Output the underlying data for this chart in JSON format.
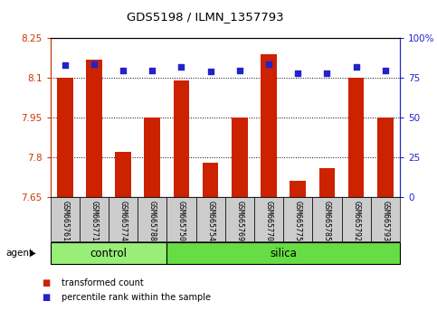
{
  "title": "GDS5198 / ILMN_1357793",
  "samples": [
    "GSM665761",
    "GSM665771",
    "GSM665774",
    "GSM665788",
    "GSM665750",
    "GSM665754",
    "GSM665769",
    "GSM665770",
    "GSM665775",
    "GSM665785",
    "GSM665792",
    "GSM665793"
  ],
  "bar_values": [
    8.1,
    8.17,
    7.82,
    7.95,
    8.09,
    7.78,
    7.95,
    8.19,
    7.71,
    7.76,
    8.1,
    7.95
  ],
  "dot_values": [
    83,
    84,
    80,
    80,
    82,
    79,
    80,
    84,
    78,
    78,
    82,
    80
  ],
  "groups": [
    {
      "label": "control",
      "start": 0,
      "end": 4,
      "color": "#99ee77"
    },
    {
      "label": "silica",
      "start": 4,
      "end": 12,
      "color": "#66dd44"
    }
  ],
  "agent_label": "agent",
  "ylim_left": [
    7.65,
    8.25
  ],
  "ylim_right": [
    0,
    100
  ],
  "yticks_left": [
    7.65,
    7.8,
    7.95,
    8.1,
    8.25
  ],
  "ytick_labels_left": [
    "7.65",
    "7.8",
    "7.95",
    "8.1",
    "8.25"
  ],
  "yticks_right": [
    0,
    25,
    50,
    75,
    100
  ],
  "ytick_labels_right": [
    "0",
    "25",
    "50",
    "75",
    "100%"
  ],
  "grid_values": [
    7.8,
    7.95,
    8.1
  ],
  "bar_color": "#cc2200",
  "dot_color": "#2222cc",
  "sample_box_color": "#cccccc",
  "legend_bar_label": "transformed count",
  "legend_dot_label": "percentile rank within the sample",
  "bar_width": 0.55,
  "bar_bottom": 7.65
}
